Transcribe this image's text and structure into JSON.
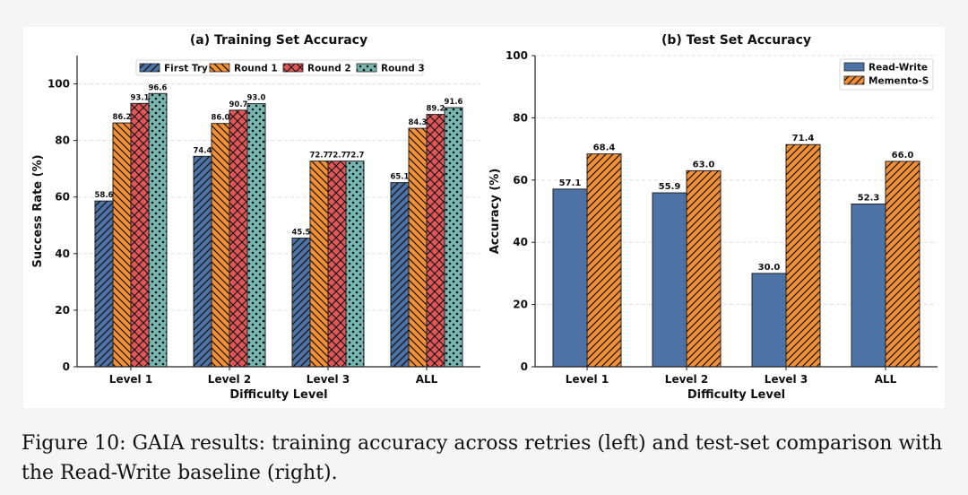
{
  "chart_data": [
    {
      "type": "bar",
      "title": "(a) Training Set Accuracy",
      "xlabel": "Difficulty Level",
      "ylabel": "Success Rate (%)",
      "ylim": [
        0,
        110
      ],
      "yticks": [
        0,
        20,
        40,
        60,
        80,
        100
      ],
      "grid": true,
      "legend": "top-center",
      "categories": [
        "Level 1",
        "Level 2",
        "Level 3",
        "ALL"
      ],
      "series": [
        {
          "name": "First Try",
          "values": [
            58.6,
            74.4,
            45.5,
            65.1
          ],
          "color": "#4c72a6",
          "pattern": "diag-right"
        },
        {
          "name": "Round 1",
          "values": [
            86.2,
            86.0,
            72.7,
            84.3
          ],
          "color": "#f39132",
          "pattern": "diag-left"
        },
        {
          "name": "Round 2",
          "values": [
            93.1,
            90.7,
            72.7,
            89.2
          ],
          "color": "#e15759",
          "pattern": "cross"
        },
        {
          "name": "Round 3",
          "values": [
            96.6,
            93.0,
            72.7,
            91.6
          ],
          "color": "#76b7b2",
          "pattern": "dots"
        }
      ]
    },
    {
      "type": "bar",
      "title": "(b) Test Set Accuracy",
      "xlabel": "Difficulty Level",
      "ylabel": "Accuracy (%)",
      "ylim": [
        0,
        100
      ],
      "yticks": [
        0,
        20,
        40,
        60,
        80,
        100
      ],
      "grid": true,
      "legend": "top-right",
      "categories": [
        "Level 1",
        "Level 2",
        "Level 3",
        "ALL"
      ],
      "series": [
        {
          "name": "Read-Write",
          "values": [
            57.1,
            55.9,
            30.0,
            52.3
          ],
          "color": "#4c72a6",
          "pattern": "none"
        },
        {
          "name": "Memento-S",
          "values": [
            68.4,
            63.0,
            71.4,
            66.0
          ],
          "color": "#f39132",
          "pattern": "diag-right"
        }
      ]
    }
  ],
  "caption": "Figure 10: GAIA results: training accuracy across retries (left) and test-set comparison with the Read-Write baseline (right)."
}
